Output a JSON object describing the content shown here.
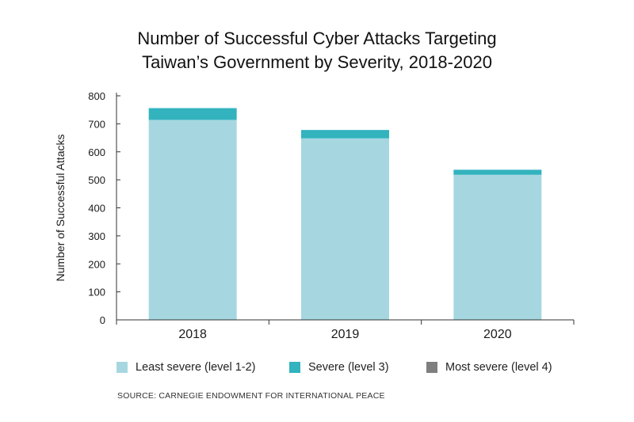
{
  "colors": {
    "least": "#a6d7e1",
    "severe": "#32b3be",
    "most": "#7f7f7f",
    "axis": "#333333"
  },
  "chart_data": {
    "type": "bar",
    "stacked": true,
    "title": "Number of Successful Cyber Attacks Targeting Taiwan’s Government by Severity, 2018-2020",
    "title_lines": [
      "Number of Successful Cyber Attacks Targeting",
      "Taiwan’s Government by Severity, 2018-2020"
    ],
    "xlabel": "",
    "ylabel": "Number of Successful Attacks",
    "ylim": [
      0,
      800
    ],
    "yticks": [
      0,
      100,
      200,
      300,
      400,
      500,
      600,
      700,
      800
    ],
    "categories": [
      "2018",
      "2019",
      "2020"
    ],
    "series": [
      {
        "name": "Least severe (level 1-2)",
        "values": [
          714,
          648,
          518
        ],
        "color": "#a6d7e1"
      },
      {
        "name": "Severe (level 3)",
        "values": [
          42,
          30,
          18
        ],
        "color": "#32b3be"
      },
      {
        "name": "Most severe (level 4)",
        "values": [
          0,
          0,
          0
        ],
        "color": "#7f7f7f"
      }
    ],
    "legend_position": "bottom",
    "grid": false,
    "source": "SOURCE: CARNEGIE ENDOWMENT FOR INTERNATIONAL PEACE"
  }
}
